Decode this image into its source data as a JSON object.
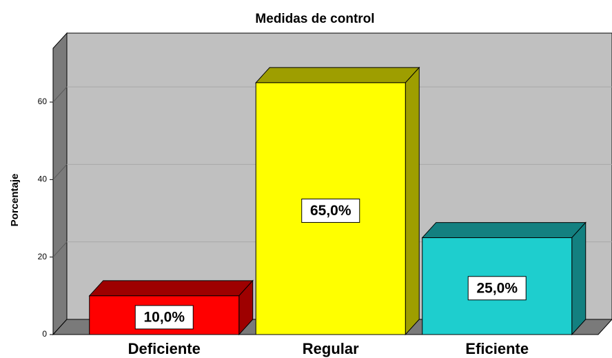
{
  "chart_data": {
    "type": "bar3d",
    "title": "Medidas de control",
    "y_label": "Porcentaje",
    "categories": [
      "Deficiente",
      "Regular",
      "Eficiente"
    ],
    "values": [
      10,
      65,
      25
    ],
    "value_labels": [
      "10,0%",
      "65,0%",
      "25,0%"
    ],
    "colors": [
      "#ff0000",
      "#ffff00",
      "#1ecece"
    ],
    "ylim": [
      0,
      74
    ],
    "yticks": [
      0,
      20,
      40,
      60
    ],
    "grid": true
  }
}
